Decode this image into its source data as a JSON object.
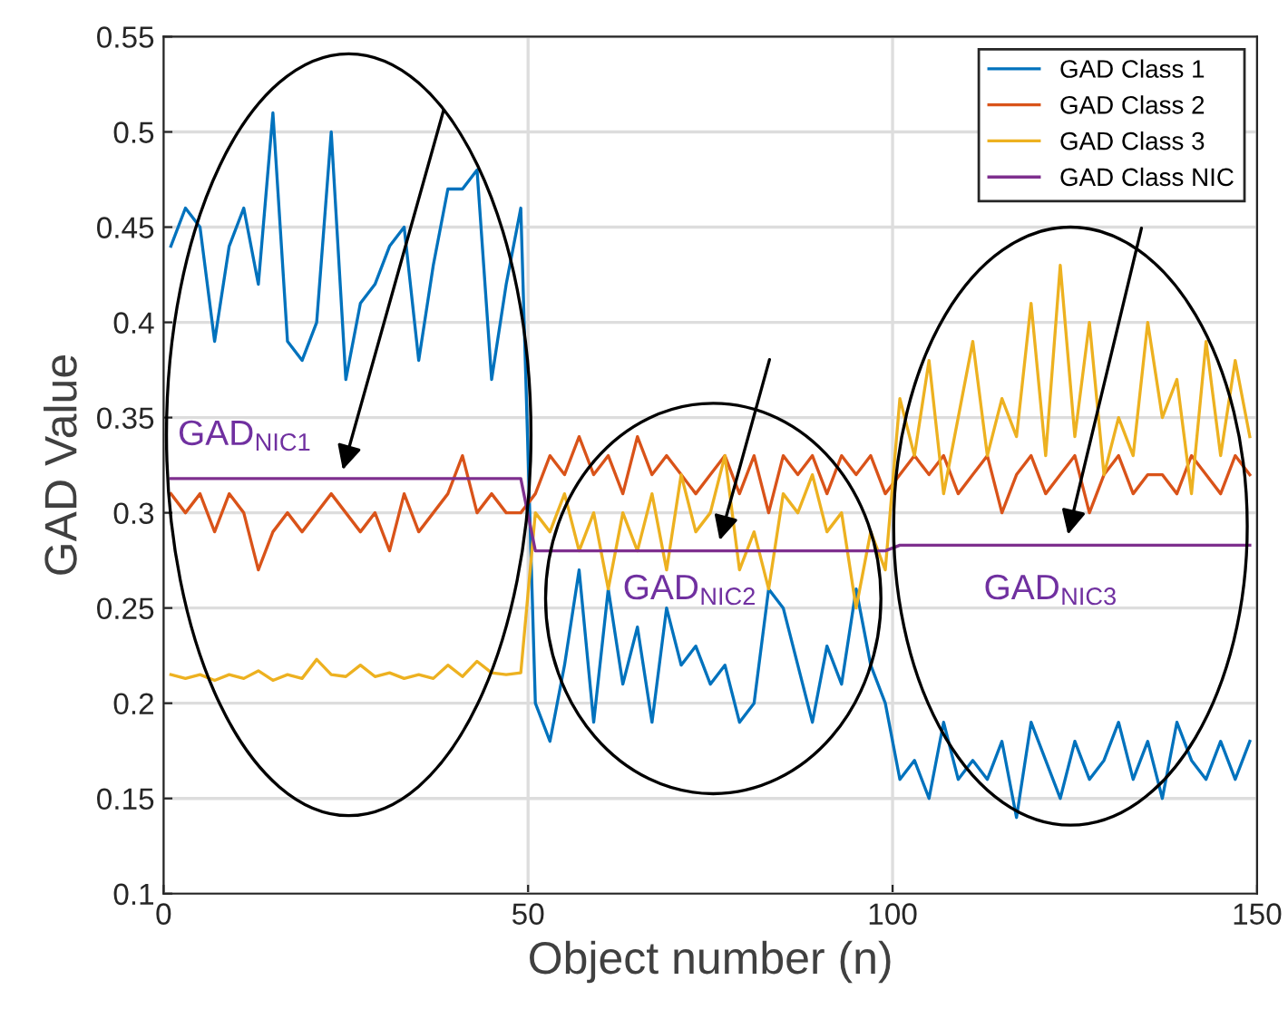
{
  "chart_data": {
    "type": "line",
    "xlabel": "Object number (n)",
    "ylabel": "GAD Value",
    "x": [
      1,
      3,
      5,
      7,
      9,
      11,
      13,
      15,
      17,
      19,
      21,
      23,
      25,
      27,
      29,
      31,
      33,
      35,
      37,
      39,
      41,
      43,
      45,
      47,
      49,
      51,
      53,
      55,
      57,
      59,
      61,
      63,
      65,
      67,
      69,
      71,
      73,
      75,
      77,
      79,
      81,
      83,
      85,
      87,
      89,
      91,
      93,
      95,
      97,
      99,
      101,
      103,
      105,
      107,
      109,
      111,
      113,
      115,
      117,
      119,
      121,
      123,
      125,
      127,
      129,
      131,
      133,
      135,
      137,
      139,
      141,
      143,
      145,
      147,
      149
    ],
    "series": [
      {
        "name": "GAD Class 1",
        "color": "#0072bd",
        "values": [
          0.44,
          0.46,
          0.45,
          0.39,
          0.44,
          0.46,
          0.42,
          0.51,
          0.39,
          0.38,
          0.4,
          0.5,
          0.37,
          0.41,
          0.42,
          0.44,
          0.45,
          0.38,
          0.43,
          0.47,
          0.47,
          0.48,
          0.37,
          0.42,
          0.46,
          0.2,
          0.18,
          0.22,
          0.27,
          0.19,
          0.26,
          0.21,
          0.24,
          0.19,
          0.25,
          0.22,
          0.23,
          0.21,
          0.22,
          0.19,
          0.2,
          0.26,
          0.25,
          0.22,
          0.19,
          0.23,
          0.21,
          0.26,
          0.22,
          0.2,
          0.16,
          0.17,
          0.15,
          0.19,
          0.16,
          0.17,
          0.16,
          0.18,
          0.14,
          0.19,
          0.17,
          0.15,
          0.18,
          0.16,
          0.17,
          0.19,
          0.16,
          0.18,
          0.15,
          0.19,
          0.17,
          0.16,
          0.18,
          0.16,
          0.18
        ]
      },
      {
        "name": "GAD Class 2",
        "color": "#d95319",
        "values": [
          0.31,
          0.3,
          0.31,
          0.29,
          0.31,
          0.3,
          0.27,
          0.29,
          0.3,
          0.29,
          0.3,
          0.31,
          0.3,
          0.29,
          0.3,
          0.28,
          0.31,
          0.29,
          0.3,
          0.31,
          0.33,
          0.3,
          0.31,
          0.3,
          0.3,
          0.31,
          0.33,
          0.32,
          0.34,
          0.32,
          0.33,
          0.31,
          0.34,
          0.32,
          0.33,
          0.32,
          0.31,
          0.32,
          0.33,
          0.31,
          0.33,
          0.3,
          0.33,
          0.32,
          0.33,
          0.31,
          0.33,
          0.32,
          0.33,
          0.31,
          0.32,
          0.33,
          0.32,
          0.33,
          0.31,
          0.32,
          0.33,
          0.3,
          0.32,
          0.33,
          0.31,
          0.32,
          0.33,
          0.3,
          0.32,
          0.33,
          0.31,
          0.32,
          0.32,
          0.31,
          0.33,
          0.32,
          0.31,
          0.33,
          0.32
        ]
      },
      {
        "name": "GAD Class 3",
        "color": "#edb120",
        "values": [
          0.215,
          0.213,
          0.215,
          0.212,
          0.215,
          0.213,
          0.217,
          0.212,
          0.215,
          0.213,
          0.223,
          0.215,
          0.214,
          0.22,
          0.214,
          0.216,
          0.213,
          0.215,
          0.213,
          0.22,
          0.214,
          0.222,
          0.216,
          0.215,
          0.216,
          0.3,
          0.29,
          0.31,
          0.28,
          0.3,
          0.26,
          0.3,
          0.28,
          0.31,
          0.27,
          0.32,
          0.29,
          0.3,
          0.33,
          0.27,
          0.29,
          0.26,
          0.31,
          0.3,
          0.32,
          0.29,
          0.3,
          0.25,
          0.29,
          0.27,
          0.36,
          0.33,
          0.38,
          0.31,
          0.35,
          0.39,
          0.33,
          0.36,
          0.34,
          0.41,
          0.33,
          0.43,
          0.34,
          0.4,
          0.32,
          0.35,
          0.33,
          0.4,
          0.35,
          0.37,
          0.31,
          0.39,
          0.33,
          0.38,
          0.34
        ]
      },
      {
        "name": "GAD Class NIC",
        "color": "#7e2f8e",
        "values": [
          0.318,
          0.318,
          0.318,
          0.318,
          0.318,
          0.318,
          0.318,
          0.318,
          0.318,
          0.318,
          0.318,
          0.318,
          0.318,
          0.318,
          0.318,
          0.318,
          0.318,
          0.318,
          0.318,
          0.318,
          0.318,
          0.318,
          0.318,
          0.318,
          0.318,
          0.28,
          0.28,
          0.28,
          0.28,
          0.28,
          0.28,
          0.28,
          0.28,
          0.28,
          0.28,
          0.28,
          0.28,
          0.28,
          0.28,
          0.28,
          0.28,
          0.28,
          0.28,
          0.28,
          0.28,
          0.28,
          0.28,
          0.28,
          0.28,
          0.28,
          0.283,
          0.283,
          0.283,
          0.283,
          0.283,
          0.283,
          0.283,
          0.283,
          0.283,
          0.283,
          0.283,
          0.283,
          0.283,
          0.283,
          0.283,
          0.283,
          0.283,
          0.283,
          0.283,
          0.283,
          0.283,
          0.283,
          0.283,
          0.283,
          0.283
        ]
      }
    ],
    "annotations": [
      "GAD$_{NIC1}$",
      "GAD$_{NIC2}$",
      "GAD$_{NIC3}$"
    ],
    "xlim": [
      0,
      150
    ],
    "xticks": [
      0,
      50,
      100,
      150
    ],
    "ylim": [
      0.1,
      0.55
    ],
    "yticks": [
      0.1,
      0.15,
      0.2,
      0.25,
      0.3,
      0.35,
      0.4,
      0.45,
      0.5,
      0.55
    ],
    "grid": true,
    "legend": "top right"
  }
}
